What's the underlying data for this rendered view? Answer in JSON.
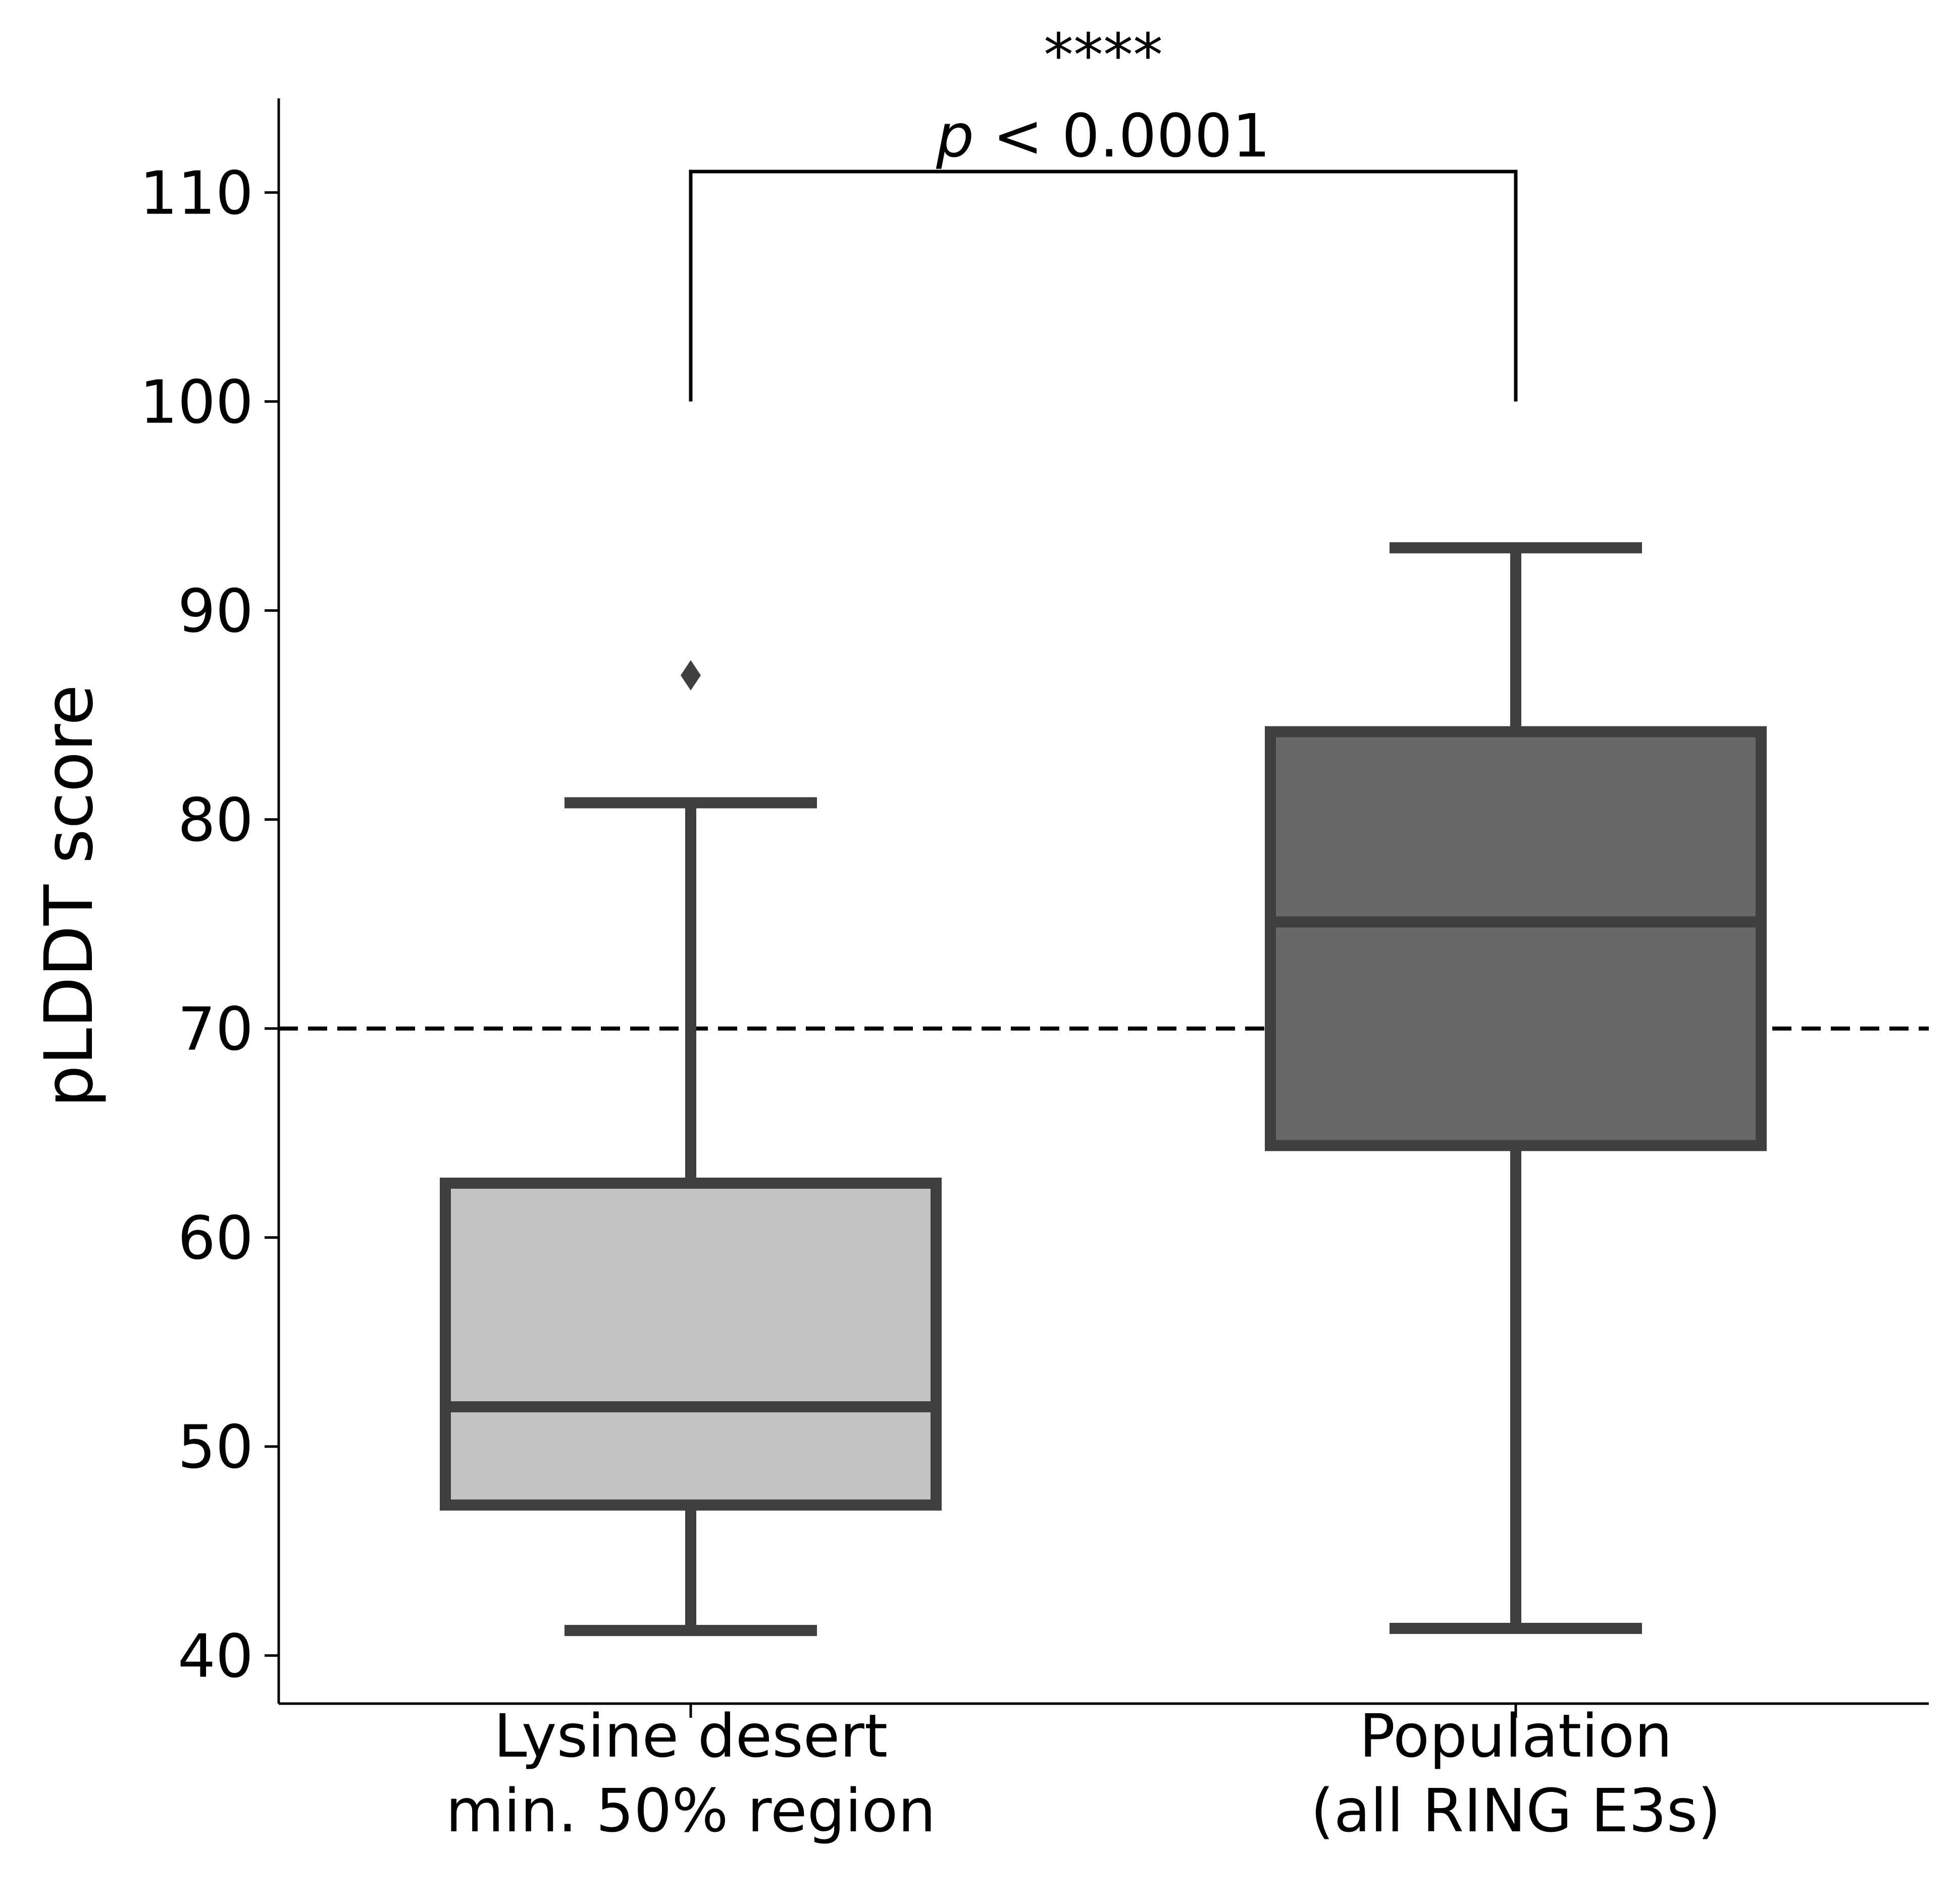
{
  "chart_data": {
    "type": "box",
    "title": "",
    "xlabel": "",
    "ylabel": "pLDDT score",
    "ylim": [
      37.7,
      114.5
    ],
    "yticks": [
      40,
      50,
      60,
      70,
      80,
      90,
      100,
      110
    ],
    "categories": [
      [
        "Lysine desert",
        "min. 50% region"
      ],
      [
        "Population",
        "(all RING E3s)"
      ]
    ],
    "boxes": [
      {
        "whisker_low": 41.2,
        "q1": 47.2,
        "median": 51.9,
        "q3": 62.6,
        "whisker_high": 80.8,
        "outliers": [
          86.9
        ],
        "fill": "#c4c4c4"
      },
      {
        "whisker_low": 41.3,
        "q1": 64.4,
        "median": 75.1,
        "q3": 84.2,
        "whisker_high": 93.0,
        "outliers": [],
        "fill": "#686868"
      }
    ],
    "box_edge_color": "#3f3f3f",
    "reference_line": {
      "y": 70,
      "style": "dashed",
      "color": "#000000"
    },
    "significance": {
      "stars": "****",
      "p_label": "p",
      "p_text": " < 0.0001",
      "bracket_bottom": 100,
      "bracket_top": 111
    },
    "grid": false,
    "legend": "none"
  }
}
